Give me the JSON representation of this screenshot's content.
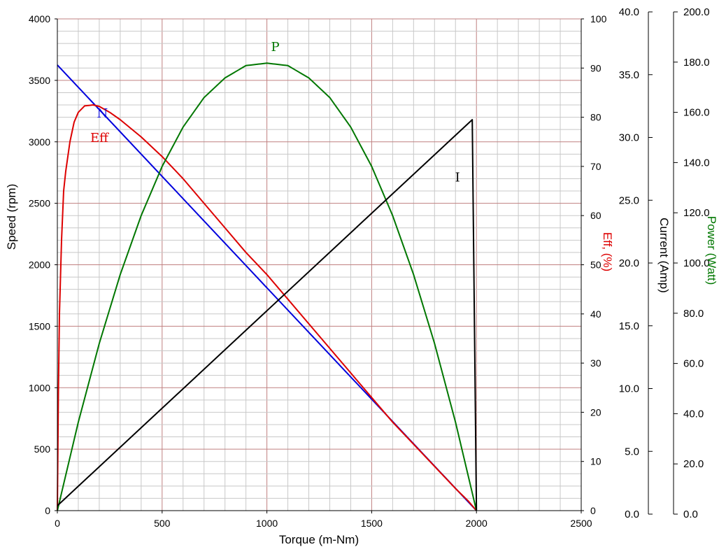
{
  "chart_data": {
    "type": "line",
    "grid": true,
    "x_axis": {
      "label": "Torque (m-Nm)",
      "range": [
        0,
        2500
      ],
      "ticks": [
        "0",
        "500",
        "1000",
        "1500",
        "2000",
        "2500"
      ]
    },
    "y_axes": {
      "speed": {
        "label": "Speed (rpm)",
        "range": [
          0,
          4000
        ],
        "ticks": [
          "0",
          "500",
          "1000",
          "1500",
          "2000",
          "2500",
          "3000",
          "3500",
          "4000"
        ],
        "color": "#000000"
      },
      "eff": {
        "label": "Eff, (%)",
        "range": [
          0,
          100
        ],
        "ticks": [
          "0",
          "10",
          "20",
          "30",
          "40",
          "50",
          "60",
          "70",
          "80",
          "90",
          "100"
        ],
        "color": "#dd0000"
      },
      "current": {
        "label": "Current (Amp)",
        "range": [
          0,
          40
        ],
        "ticks": [
          "0.0",
          "5.0",
          "10.0",
          "15.0",
          "20.0",
          "25.0",
          "30.0",
          "35.0",
          "40.0"
        ],
        "color": "#000000"
      },
      "power": {
        "label": "Power (Watt)",
        "range": [
          0,
          200
        ],
        "ticks": [
          "0.0",
          "20.0",
          "40.0",
          "60.0",
          "80.0",
          "100.0",
          "120.0",
          "140.0",
          "160.0",
          "180.0",
          "200.0"
        ],
        "color": "#007700"
      }
    },
    "series": [
      {
        "name": "N",
        "axis": "speed",
        "color": "#0000dd",
        "x": [
          0,
          2000
        ],
        "y": [
          3625,
          0
        ]
      },
      {
        "name": "Eff",
        "axis": "eff",
        "color": "#dd0000",
        "x": [
          0,
          5,
          10,
          20,
          30,
          40,
          60,
          80,
          100,
          130,
          170,
          200,
          250,
          300,
          400,
          500,
          600,
          700,
          800,
          900,
          1000,
          1100,
          1200,
          1300,
          1400,
          1500,
          1600,
          1700,
          1800,
          1900,
          1960,
          2000
        ],
        "y": [
          0,
          24,
          40,
          55,
          65,
          69,
          75,
          79,
          81,
          82.3,
          82.5,
          82.2,
          81,
          79.5,
          76,
          72,
          67.5,
          62.5,
          57.5,
          52.5,
          48,
          43,
          38,
          33,
          28,
          23,
          18,
          13.5,
          9,
          4.5,
          2,
          0
        ]
      },
      {
        "name": "P",
        "axis": "power",
        "color": "#007700",
        "x": [
          0,
          100,
          200,
          300,
          400,
          500,
          600,
          700,
          800,
          900,
          1000,
          1100,
          1200,
          1300,
          1400,
          1500,
          1600,
          1700,
          1800,
          1900,
          2000
        ],
        "y": [
          0,
          36,
          68,
          96,
          120,
          140,
          156,
          168,
          176,
          181,
          182,
          181,
          176,
          168,
          156,
          140,
          120,
          96,
          68,
          36,
          0
        ]
      },
      {
        "name": "I",
        "axis": "current",
        "color": "#000000",
        "x": [
          0,
          1980,
          2000
        ],
        "y": [
          0.4,
          31.8,
          0
        ]
      }
    ],
    "annotations": [
      {
        "text": "N",
        "color": "#0000dd"
      },
      {
        "text": "Eff",
        "color": "#dd0000"
      },
      {
        "text": "P",
        "color": "#007700"
      },
      {
        "text": "I",
        "color": "#000000"
      }
    ]
  }
}
